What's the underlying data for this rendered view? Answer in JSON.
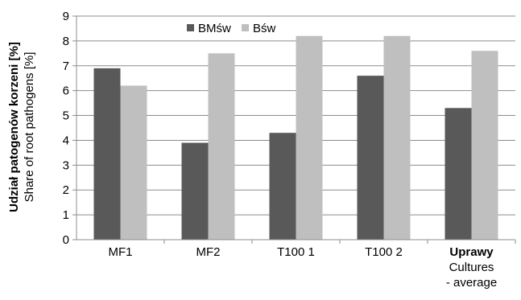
{
  "chart_data": {
    "type": "bar",
    "categories": [
      {
        "lines": [
          "MF1"
        ],
        "bold_first": false
      },
      {
        "lines": [
          "MF2"
        ],
        "bold_first": false
      },
      {
        "lines": [
          "T100 1"
        ],
        "bold_first": false
      },
      {
        "lines": [
          "T100 2"
        ],
        "bold_first": false
      },
      {
        "lines": [
          "Uprawy",
          "Cultures",
          "- average"
        ],
        "bold_first": true
      }
    ],
    "series": [
      {
        "name": "BMśw",
        "color": "#595959",
        "values": [
          6.9,
          3.9,
          4.3,
          6.6,
          5.3
        ]
      },
      {
        "name": "Bśw",
        "color": "#bfbfbf",
        "values": [
          6.2,
          7.5,
          8.2,
          8.2,
          7.6
        ]
      }
    ],
    "ylabel_primary": "Udział patogenów korzeni [%]",
    "ylabel_secondary": "Share of root pathogens [%]",
    "ylim": [
      0,
      9
    ],
    "yticks": [
      0,
      1,
      2,
      3,
      4,
      5,
      6,
      7,
      8,
      9
    ],
    "grid": true,
    "legend_position": "top-center"
  }
}
